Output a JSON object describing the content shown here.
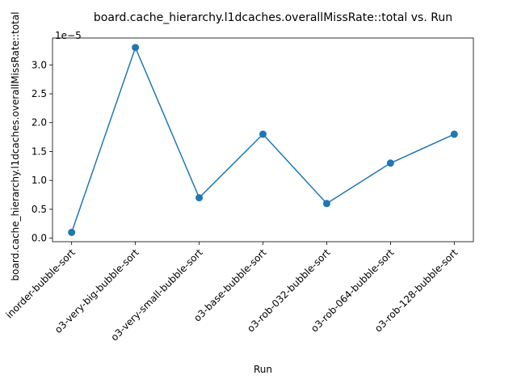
{
  "chart_data": {
    "type": "line",
    "title": "board.cache_hierarchy.l1dcaches.overallMissRate::total vs. Run",
    "xlabel": "Run",
    "ylabel": "board.cache_hierarchy.l1dcaches.overallMissRate::total",
    "y_offset_label": "1e−5",
    "categories": [
      "inorder-bubble-sort",
      "o3-very-big-bubble-sort",
      "o3-very-small-bubble-sort",
      "o3-base-bubble-sort",
      "o3-rob-032-bubble-sort",
      "o3-rob-064-bubble-sort",
      "o3-rob-128-bubble-sort"
    ],
    "series": [
      {
        "values": [
          1e-06,
          3.3e-05,
          7e-06,
          1.8e-05,
          6e-06,
          1.3e-05,
          1.8e-05
        ],
        "color": "#1f77b4"
      }
    ],
    "yticks": [
      0.0,
      0.5,
      1.0,
      1.5,
      2.0,
      2.5,
      3.0
    ],
    "ytick_labels": [
      "0.0",
      "0.5",
      "1.0",
      "1.5",
      "2.0",
      "2.5",
      "3.0"
    ],
    "y_scale": 1e-05,
    "ylim": [
      -6.1e-07,
      3.466e-05
    ],
    "grid": false,
    "legend": "none"
  }
}
